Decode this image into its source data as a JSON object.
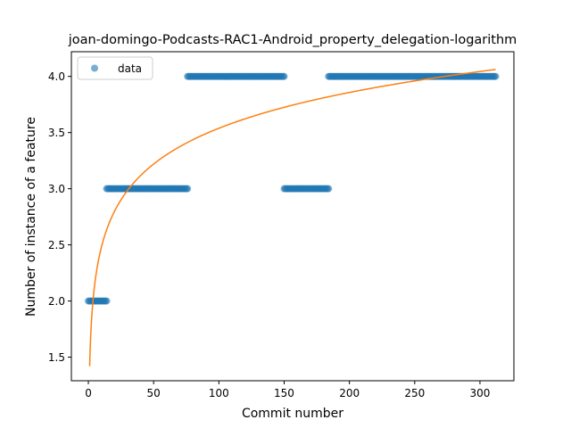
{
  "chart_data": {
    "type": "scatter",
    "title": "joan-domingo-Podcasts-RAC1-Android_property_delegation-logarithm",
    "xlabel": "Commit number",
    "ylabel": "Number of instance of a feature",
    "xlim": [
      -13,
      326
    ],
    "ylim": [
      1.29,
      4.22
    ],
    "xticks": [
      0,
      50,
      100,
      150,
      200,
      250,
      300
    ],
    "yticks": [
      1.5,
      2.0,
      2.5,
      3.0,
      3.5,
      4.0
    ],
    "xtick_labels": [
      "0",
      "50",
      "100",
      "150",
      "200",
      "250",
      "300"
    ],
    "ytick_labels": [
      "1.5",
      "2.0",
      "2.5",
      "3.0",
      "3.5",
      "4.0"
    ],
    "grid": false,
    "legend": {
      "position": "top-left",
      "entries": [
        "data"
      ]
    },
    "series": [
      {
        "name": "data",
        "kind": "points",
        "color": "#1f77b4",
        "segments": [
          {
            "x_start": 0,
            "x_end": 14,
            "y": 2.0
          },
          {
            "x_start": 14,
            "x_end": 76,
            "y": 3.0
          },
          {
            "x_start": 76,
            "x_end": 150,
            "y": 4.0
          },
          {
            "x_start": 150,
            "x_end": 184,
            "y": 3.0
          },
          {
            "x_start": 184,
            "x_end": 312,
            "y": 4.0
          }
        ]
      },
      {
        "kind": "fit-curve",
        "color": "#ff7f0e",
        "model": "logarithmic",
        "a": 1.42,
        "b": 0.46,
        "x_range": [
          1,
          312
        ]
      }
    ]
  }
}
